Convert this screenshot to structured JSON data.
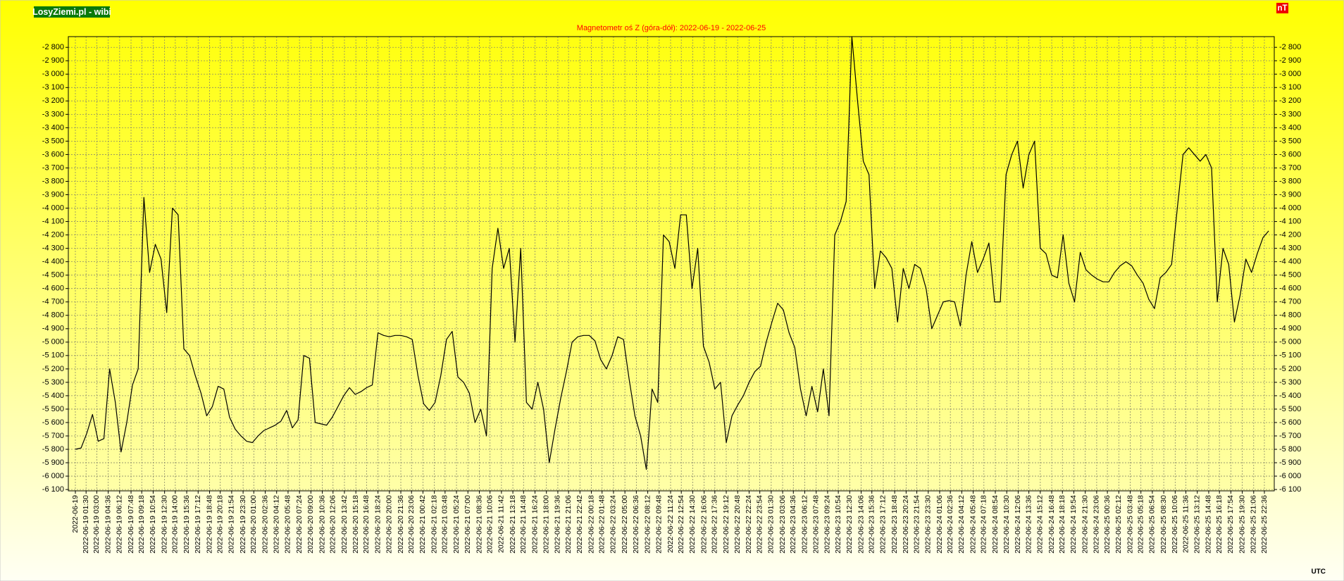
{
  "chart_data": {
    "type": "line",
    "source": "LosyZiemi.pl - wibi",
    "title": "Magnetometr oś Z (góra-dół): 2022-06-19 - 2022-06-25",
    "ylabel": "nT",
    "xlabel": "UTC",
    "color": "#000000",
    "grid": true,
    "ylim": [
      -6110,
      -2720
    ],
    "yticks": [
      {
        "value": -2800,
        "label": "-2 800"
      },
      {
        "value": -2900,
        "label": "-2 900"
      },
      {
        "value": -3000,
        "label": "-3 000"
      },
      {
        "value": -3100,
        "label": "-3 100"
      },
      {
        "value": -3200,
        "label": "-3 200"
      },
      {
        "value": -3300,
        "label": "-3 300"
      },
      {
        "value": -3400,
        "label": "-3 400"
      },
      {
        "value": -3500,
        "label": "-3 500"
      },
      {
        "value": -3600,
        "label": "-3 600"
      },
      {
        "value": -3700,
        "label": "-3 700"
      },
      {
        "value": -3800,
        "label": "-3 800"
      },
      {
        "value": -3900,
        "label": "-3 900"
      },
      {
        "value": -4000,
        "label": "-4 000"
      },
      {
        "value": -4100,
        "label": "-4 100"
      },
      {
        "value": -4200,
        "label": "-4 200"
      },
      {
        "value": -4300,
        "label": "-4 300"
      },
      {
        "value": -4400,
        "label": "-4 400"
      },
      {
        "value": -4500,
        "label": "-4 500"
      },
      {
        "value": -4600,
        "label": "-4 600"
      },
      {
        "value": -4700,
        "label": "-4 700"
      },
      {
        "value": -4800,
        "label": "-4 800"
      },
      {
        "value": -4900,
        "label": "-4 900"
      },
      {
        "value": -5000,
        "label": "-5 000"
      },
      {
        "value": -5100,
        "label": "-5 100"
      },
      {
        "value": -5200,
        "label": "-5 200"
      },
      {
        "value": -5300,
        "label": "-5 300"
      },
      {
        "value": -5400,
        "label": "-5 400"
      },
      {
        "value": -5500,
        "label": "-5 500"
      },
      {
        "value": -5600,
        "label": "-5 600"
      },
      {
        "value": -5700,
        "label": "-5 700"
      },
      {
        "value": -5800,
        "label": "-5 800"
      },
      {
        "value": -5900,
        "label": "-5 900"
      },
      {
        "value": -6000,
        "label": "-6 000"
      },
      {
        "value": -6100,
        "label": "-6 100"
      }
    ],
    "xlim": [
      "2022-06-19 00:00",
      "2022-06-25 23:59"
    ],
    "xticks": [
      "2022-06-19",
      "2022-06-19 01:30",
      "2022-06-19 03:00",
      "2022-06-19 04:36",
      "2022-06-19 06:12",
      "2022-06-19 07:48",
      "2022-06-19 09:18",
      "2022-06-19 10:54",
      "2022-06-19 12:30",
      "2022-06-19 14:00",
      "2022-06-19 15:36",
      "2022-06-19 17:12",
      "2022-06-19 18:48",
      "2022-06-19 20:18",
      "2022-06-19 21:54",
      "2022-06-19 23:30",
      "2022-06-20 01:00",
      "2022-06-20 02:36",
      "2022-06-20 04:12",
      "2022-06-20 05:48",
      "2022-06-20 07:24",
      "2022-06-20 09:00",
      "2022-06-20 10:36",
      "2022-06-20 12:06",
      "2022-06-20 13:42",
      "2022-06-20 15:18",
      "2022-06-20 16:48",
      "2022-06-20 18:24",
      "2022-06-20 20:00",
      "2022-06-20 21:36",
      "2022-06-20 23:06",
      "2022-06-21 00:42",
      "2022-06-21 02:18",
      "2022-06-21 03:48",
      "2022-06-21 05:24",
      "2022-06-21 07:00",
      "2022-06-21 08:36",
      "2022-06-21 10:06",
      "2022-06-21 11:42",
      "2022-06-21 13:18",
      "2022-06-21 14:48",
      "2022-06-21 16:24",
      "2022-06-21 18:00",
      "2022-06-21 19:36",
      "2022-06-21 21:06",
      "2022-06-21 22:42",
      "2022-06-22 00:18",
      "2022-06-22 01:48",
      "2022-06-22 03:24",
      "2022-06-22 05:00",
      "2022-06-22 06:36",
      "2022-06-22 08:12",
      "2022-06-22 09:48",
      "2022-06-22 11:24",
      "2022-06-22 12:54",
      "2022-06-22 14:30",
      "2022-06-22 16:06",
      "2022-06-22 17:36",
      "2022-06-22 19:12",
      "2022-06-22 20:48",
      "2022-06-22 22:24",
      "2022-06-22 23:54",
      "2022-06-23 01:30",
      "2022-06-23 03:06",
      "2022-06-23 04:36",
      "2022-06-23 06:12",
      "2022-06-23 07:48",
      "2022-06-23 09:24",
      "2022-06-23 10:54",
      "2022-06-23 12:30",
      "2022-06-23 14:06",
      "2022-06-23 15:36",
      "2022-06-23 17:12",
      "2022-06-23 18:48",
      "2022-06-23 20:24",
      "2022-06-23 21:54",
      "2022-06-23 23:30",
      "2022-06-24 01:06",
      "2022-06-24 02:36",
      "2022-06-24 04:12",
      "2022-06-24 05:48",
      "2022-06-24 07:18",
      "2022-06-24 08:54",
      "2022-06-24 10:30",
      "2022-06-24 12:06",
      "2022-06-24 13:36",
      "2022-06-24 15:12",
      "2022-06-24 16:48",
      "2022-06-24 18:18",
      "2022-06-24 19:54",
      "2022-06-24 21:30",
      "2022-06-24 23:06",
      "2022-06-25 00:36",
      "2022-06-25 02:12",
      "2022-06-25 03:48",
      "2022-06-25 05:18",
      "2022-06-25 06:54",
      "2022-06-25 08:30",
      "2022-06-25 10:06",
      "2022-06-25 11:36",
      "2022-06-25 13:12",
      "2022-06-25 14:48",
      "2022-06-25 16:18",
      "2022-06-25 17:54",
      "2022-06-25 19:30",
      "2022-06-25 21:06",
      "2022-06-25 22:36"
    ],
    "x": [
      "2022-06-19 00:00",
      "2022-06-19 00:48",
      "2022-06-19 01:36",
      "2022-06-19 02:24",
      "2022-06-19 03:12",
      "2022-06-19 04:00",
      "2022-06-19 04:48",
      "2022-06-19 05:36",
      "2022-06-19 06:24",
      "2022-06-19 07:12",
      "2022-06-19 08:00",
      "2022-06-19 08:48",
      "2022-06-19 09:36",
      "2022-06-19 10:24",
      "2022-06-19 11:12",
      "2022-06-19 12:00",
      "2022-06-19 12:48",
      "2022-06-19 13:36",
      "2022-06-19 14:24",
      "2022-06-19 15:12",
      "2022-06-19 16:00",
      "2022-06-19 16:48",
      "2022-06-19 17:36",
      "2022-06-19 18:24",
      "2022-06-19 19:12",
      "2022-06-19 20:00",
      "2022-06-19 20:48",
      "2022-06-19 21:36",
      "2022-06-19 22:24",
      "2022-06-19 23:12",
      "2022-06-20 00:00",
      "2022-06-20 00:48",
      "2022-06-20 01:36",
      "2022-06-20 02:24",
      "2022-06-20 03:12",
      "2022-06-20 04:00",
      "2022-06-20 04:48",
      "2022-06-20 05:36",
      "2022-06-20 06:24",
      "2022-06-20 07:12",
      "2022-06-20 08:00",
      "2022-06-20 08:48",
      "2022-06-20 09:36",
      "2022-06-20 10:24",
      "2022-06-20 11:12",
      "2022-06-20 12:00",
      "2022-06-20 12:48",
      "2022-06-20 13:36",
      "2022-06-20 14:24",
      "2022-06-20 15:12",
      "2022-06-20 16:00",
      "2022-06-20 16:48",
      "2022-06-20 17:36",
      "2022-06-20 18:24",
      "2022-06-20 19:12",
      "2022-06-20 20:00",
      "2022-06-20 20:48",
      "2022-06-20 21:36",
      "2022-06-20 22:24",
      "2022-06-20 23:12",
      "2022-06-21 00:00",
      "2022-06-21 00:48",
      "2022-06-21 01:36",
      "2022-06-21 02:24",
      "2022-06-21 03:12",
      "2022-06-21 04:00",
      "2022-06-21 04:48",
      "2022-06-21 05:36",
      "2022-06-21 06:24",
      "2022-06-21 07:12",
      "2022-06-21 08:00",
      "2022-06-21 08:48",
      "2022-06-21 09:36",
      "2022-06-21 10:24",
      "2022-06-21 11:12",
      "2022-06-21 12:00",
      "2022-06-21 12:48",
      "2022-06-21 13:36",
      "2022-06-21 14:24",
      "2022-06-21 15:12",
      "2022-06-21 16:00",
      "2022-06-21 16:48",
      "2022-06-21 17:36",
      "2022-06-21 18:24",
      "2022-06-21 19:12",
      "2022-06-21 20:00",
      "2022-06-21 20:48",
      "2022-06-21 21:36",
      "2022-06-21 22:24",
      "2022-06-21 23:12",
      "2022-06-22 00:00",
      "2022-06-22 00:48",
      "2022-06-22 01:36",
      "2022-06-22 02:24",
      "2022-06-22 03:12",
      "2022-06-22 04:00",
      "2022-06-22 04:48",
      "2022-06-22 05:36",
      "2022-06-22 06:24",
      "2022-06-22 07:12",
      "2022-06-22 08:00",
      "2022-06-22 08:48",
      "2022-06-22 09:36",
      "2022-06-22 10:24",
      "2022-06-22 11:12",
      "2022-06-22 12:00",
      "2022-06-22 12:48",
      "2022-06-22 13:36",
      "2022-06-22 14:24",
      "2022-06-22 15:12",
      "2022-06-22 16:00",
      "2022-06-22 16:48",
      "2022-06-22 17:36",
      "2022-06-22 18:24",
      "2022-06-22 19:12",
      "2022-06-22 20:00",
      "2022-06-22 20:48",
      "2022-06-22 21:36",
      "2022-06-22 22:24",
      "2022-06-22 23:12",
      "2022-06-23 00:00",
      "2022-06-23 00:48",
      "2022-06-23 01:36",
      "2022-06-23 02:24",
      "2022-06-23 03:12",
      "2022-06-23 04:00",
      "2022-06-23 04:48",
      "2022-06-23 05:36",
      "2022-06-23 06:24",
      "2022-06-23 07:12",
      "2022-06-23 08:00",
      "2022-06-23 08:48",
      "2022-06-23 09:36",
      "2022-06-23 10:24",
      "2022-06-23 11:12",
      "2022-06-23 12:00",
      "2022-06-23 12:48",
      "2022-06-23 13:36",
      "2022-06-23 14:24",
      "2022-06-23 15:12",
      "2022-06-23 16:00",
      "2022-06-23 16:48",
      "2022-06-23 17:36",
      "2022-06-23 18:24",
      "2022-06-23 19:12",
      "2022-06-23 20:00",
      "2022-06-23 20:48",
      "2022-06-23 21:36",
      "2022-06-23 22:24",
      "2022-06-23 23:12",
      "2022-06-24 00:00",
      "2022-06-24 00:48",
      "2022-06-24 01:36",
      "2022-06-24 02:24",
      "2022-06-24 03:12",
      "2022-06-24 04:00",
      "2022-06-24 04:48",
      "2022-06-24 05:36",
      "2022-06-24 06:24",
      "2022-06-24 07:12",
      "2022-06-24 08:00",
      "2022-06-24 08:48",
      "2022-06-24 09:36",
      "2022-06-24 10:24",
      "2022-06-24 11:12",
      "2022-06-24 12:00",
      "2022-06-24 12:48",
      "2022-06-24 13:36",
      "2022-06-24 14:24",
      "2022-06-24 15:12",
      "2022-06-24 16:00",
      "2022-06-24 16:48",
      "2022-06-24 17:36",
      "2022-06-24 18:24",
      "2022-06-24 19:12",
      "2022-06-24 20:00",
      "2022-06-24 20:48",
      "2022-06-24 21:36",
      "2022-06-24 22:24",
      "2022-06-24 23:12",
      "2022-06-25 00:00",
      "2022-06-25 00:48",
      "2022-06-25 01:36",
      "2022-06-25 02:24",
      "2022-06-25 03:12",
      "2022-06-25 04:00",
      "2022-06-25 04:48",
      "2022-06-25 05:36",
      "2022-06-25 06:24",
      "2022-06-25 07:12",
      "2022-06-25 08:00",
      "2022-06-25 08:48",
      "2022-06-25 09:36",
      "2022-06-25 10:24",
      "2022-06-25 11:12",
      "2022-06-25 12:00",
      "2022-06-25 12:48",
      "2022-06-25 13:36",
      "2022-06-25 14:24",
      "2022-06-25 15:12",
      "2022-06-25 16:00",
      "2022-06-25 16:48",
      "2022-06-25 17:36",
      "2022-06-25 18:24",
      "2022-06-25 19:12",
      "2022-06-25 20:00",
      "2022-06-25 20:48",
      "2022-06-25 21:36",
      "2022-06-25 22:24",
      "2022-06-25 23:12"
    ],
    "values": [
      -5800,
      -5790,
      -5680,
      -5540,
      -5740,
      -5720,
      -5200,
      -5450,
      -5820,
      -5600,
      -5320,
      -5200,
      -3920,
      -4480,
      -4270,
      -4380,
      -4780,
      -4000,
      -4050,
      -5050,
      -5100,
      -5250,
      -5380,
      -5550,
      -5480,
      -5330,
      -5350,
      -5560,
      -5650,
      -5700,
      -5740,
      -5750,
      -5700,
      -5660,
      -5640,
      -5620,
      -5590,
      -5510,
      -5640,
      -5580,
      -5100,
      -5120,
      -5600,
      -5610,
      -5620,
      -5560,
      -5480,
      -5400,
      -5340,
      -5390,
      -5370,
      -5340,
      -5320,
      -4930,
      -4950,
      -4960,
      -4950,
      -4950,
      -4960,
      -4980,
      -5250,
      -5460,
      -5510,
      -5450,
      -5250,
      -4980,
      -4920,
      -5260,
      -5300,
      -5380,
      -5600,
      -5500,
      -5700,
      -4450,
      -4150,
      -4450,
      -4300,
      -5000,
      -4300,
      -5450,
      -5500,
      -5300,
      -5500,
      -5900,
      -5650,
      -5420,
      -5220,
      -5000,
      -4960,
      -4950,
      -4950,
      -4990,
      -5130,
      -5200,
      -5100,
      -4960,
      -4980,
      -5280,
      -5550,
      -5700,
      -5950,
      -5350,
      -5450,
      -4200,
      -4250,
      -4450,
      -4050,
      -4050,
      -4600,
      -4300,
      -5030,
      -5150,
      -5350,
      -5300,
      -5750,
      -5550,
      -5470,
      -5400,
      -5300,
      -5220,
      -5180,
      -5000,
      -4850,
      -4710,
      -4760,
      -4930,
      -5040,
      -5350,
      -5550,
      -5330,
      -5520,
      -5200,
      -5550,
      -4200,
      -4100,
      -3950,
      -2720,
      -3200,
      -3650,
      -3750,
      -4600,
      -4320,
      -4370,
      -4450,
      -4850,
      -4450,
      -4600,
      -4420,
      -4450,
      -4600,
      -4900,
      -4800,
      -4700,
      -4690,
      -4700,
      -4880,
      -4500,
      -4250,
      -4480,
      -4380,
      -4260,
      -4700,
      -4700,
      -3750,
      -3600,
      -3500,
      -3850,
      -3600,
      -3500,
      -4300,
      -4340,
      -4500,
      -4520,
      -4200,
      -4560,
      -4700,
      -4330,
      -4460,
      -4500,
      -4530,
      -4550,
      -4550,
      -4480,
      -4430,
      -4400,
      -4430,
      -4500,
      -4560,
      -4680,
      -4750,
      -4520,
      -4480,
      -4420,
      -4000,
      -3600,
      -3550,
      -3600,
      -3650,
      -3600,
      -3700,
      -4700,
      -4300,
      -4420,
      -4850,
      -4650,
      -4380,
      -4480,
      -4340,
      -4220,
      -4170
    ]
  }
}
